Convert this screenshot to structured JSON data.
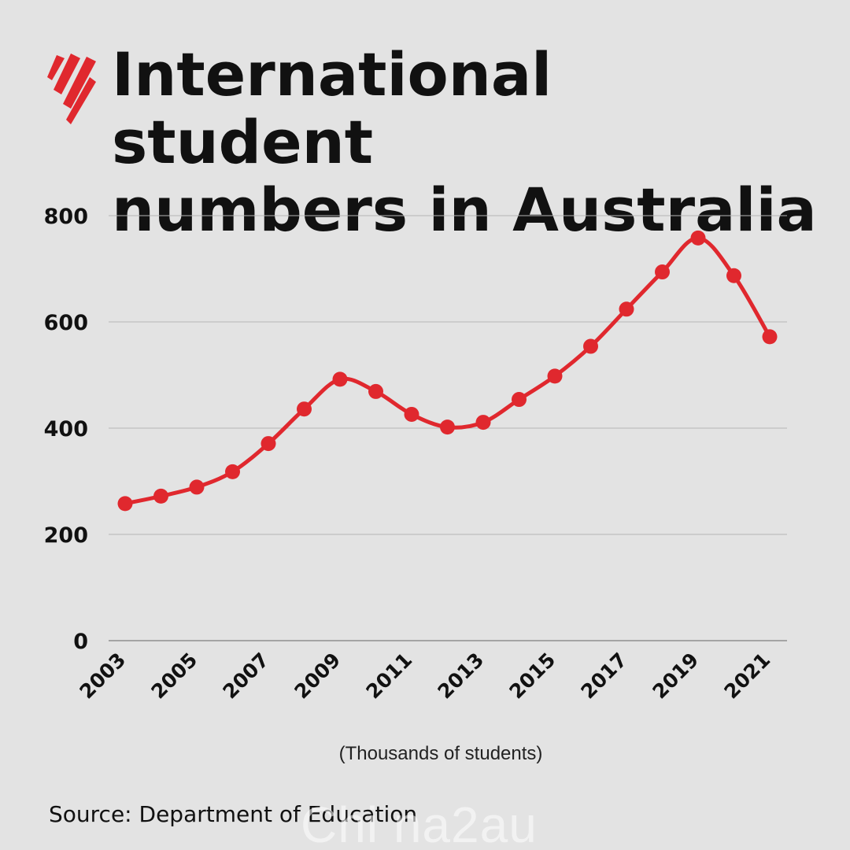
{
  "title_line1": "International student",
  "title_line2": "numbers in Australia",
  "unit_note": "(Thousands of students)",
  "source": "Source: Department of Education",
  "watermark": "Chi na2au",
  "colors": {
    "background": "#e3e3e3",
    "line": "#e0282e",
    "grid": "#b5b5b5",
    "logo": "#e0282e"
  },
  "chart_data": {
    "type": "line",
    "title": "International student numbers in Australia",
    "xlabel": "",
    "ylabel": "",
    "ylim": [
      0,
      800
    ],
    "yticks": [
      "0",
      "200",
      "400",
      "600",
      "800"
    ],
    "xticks": [
      "2003",
      "2005",
      "2007",
      "2009",
      "2011",
      "2013",
      "2015",
      "2017",
      "2019",
      "2021"
    ],
    "grid": true,
    "series": [
      {
        "x": [
          2003,
          2004,
          2005,
          2006,
          2007,
          2008,
          2009,
          2010,
          2011,
          2012,
          2013,
          2014,
          2015,
          2016,
          2017,
          2018,
          2019,
          2020,
          2021
        ],
        "values": [
          258,
          272,
          289,
          318,
          371,
          436,
          492,
          469,
          426,
          402,
          411,
          454,
          498,
          554,
          624,
          694,
          758,
          687,
          572
        ]
      }
    ]
  }
}
